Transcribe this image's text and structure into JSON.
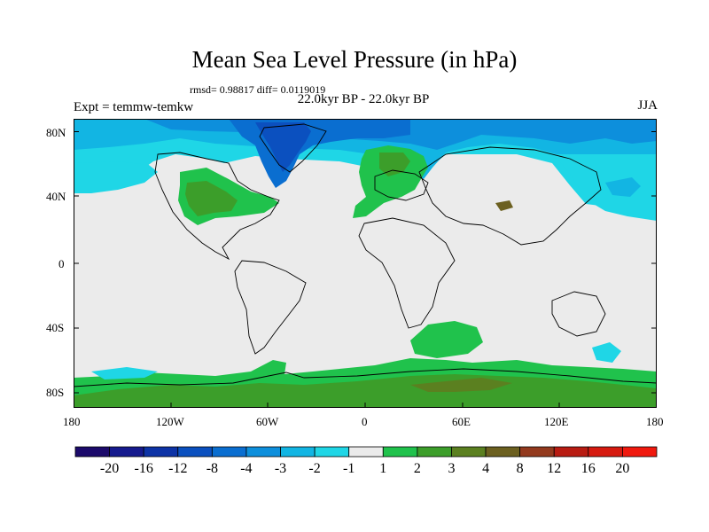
{
  "title": "Mean Sea Level Pressure (in hPa)",
  "stats": "rmsd= 0.98817 diff= 0.0119019",
  "experiment": "Expt = temmw-temkw",
  "period": "22.0kyr BP - 22.0kyr BP",
  "season": "JJA",
  "map": {
    "projection": "cylindrical-equidistant",
    "lon_range": [
      -180,
      180
    ],
    "lat_range": [
      -90,
      90
    ],
    "lat_ticks": [
      "80N",
      "40N",
      "0",
      "40S",
      "80S"
    ],
    "lon_ticks": [
      "180",
      "120W",
      "60W",
      "0",
      "60E",
      "120E",
      "180"
    ],
    "regions": [
      {
        "name": "arctic-ocean-low",
        "level": "-4"
      },
      {
        "name": "north-atlantic-greenland-low",
        "level": "-8"
      },
      {
        "name": "north-america-high",
        "level": "2"
      },
      {
        "name": "europe-high",
        "level": "2"
      },
      {
        "name": "southern-ocean-high",
        "level": "2"
      },
      {
        "name": "antarctic-high",
        "level": "4"
      }
    ]
  },
  "colorbar": {
    "labels": [
      "-20",
      "-16",
      "-12",
      "-8",
      "-4",
      "-3",
      "-2",
      "-1",
      "1",
      "2",
      "3",
      "4",
      "8",
      "12",
      "16",
      "20"
    ],
    "colors": [
      "#1c0a6b",
      "#161a8e",
      "#0d33a6",
      "#0b50bf",
      "#0a6ed0",
      "#0d8fdc",
      "#12b5e3",
      "#1fd6e6",
      "#ebebeb",
      "#20c24c",
      "#3c9e2a",
      "#5b8020",
      "#6c6020",
      "#933a1e",
      "#b81c12",
      "#d61a10",
      "#f0190e"
    ]
  }
}
